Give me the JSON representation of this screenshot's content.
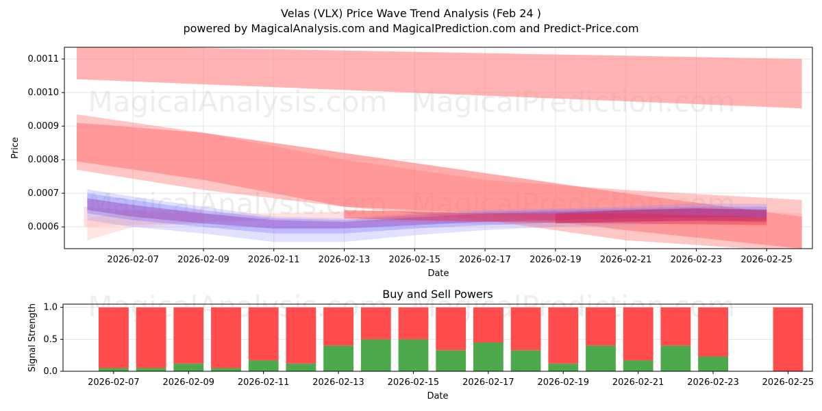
{
  "title": "Velas (VLX) Price Wave Trend Analysis (Feb 24 )",
  "subtitle": "powered by MagicalAnalysis.com and MagicalPrediction.com and Predict-Price.com",
  "watermarks": [
    "MagicalAnalysis.com",
    "MagicalPrediction.com"
  ],
  "chart_data": [
    {
      "type": "area",
      "title": "",
      "xlabel": "Date",
      "ylabel": "Price",
      "ylim": [
        0.000535,
        0.001135
      ],
      "xlim_days": [
        -1.95,
        19.3
      ],
      "x_ticks": [
        "2026-02-07",
        "2026-02-09",
        "2026-02-11",
        "2026-02-13",
        "2026-02-15",
        "2026-02-17",
        "2026-02-19",
        "2026-02-21",
        "2026-02-23",
        "2026-02-25"
      ],
      "y_ticks": [
        "0.0006",
        "0.0007",
        "0.0008",
        "0.0009",
        "0.0010",
        "0.0011"
      ],
      "grid": true,
      "bands": [
        {
          "color": "#ff8080",
          "opacity": 0.6,
          "x": [
            -1.6,
            19
          ],
          "upper": [
            0.00114,
            0.0011
          ],
          "lower": [
            0.00104,
            0.000953
          ]
        },
        {
          "color": "#ff6666",
          "opacity": 0.55,
          "x": [
            -1.6,
            2,
            6,
            10,
            14,
            19
          ],
          "upper": [
            0.00091,
            0.00088,
            0.00082,
            0.00076,
            0.0007,
            0.00063
          ],
          "lower": [
            0.000795,
            0.00074,
            0.00066,
            0.00064,
            0.00059,
            0.000535
          ]
        },
        {
          "color": "#ff8080",
          "opacity": 0.45,
          "x": [
            -1.6,
            2,
            6,
            10,
            14,
            19
          ],
          "upper": [
            0.000935,
            0.00088,
            0.0008,
            0.00074,
            0.00071,
            0.00068
          ],
          "lower": [
            0.00077,
            0.00071,
            0.00066,
            0.00062,
            0.00056,
            0.000525
          ]
        },
        {
          "color": "#ff9999",
          "opacity": 0.3,
          "x": [
            -1.4,
            1,
            4,
            8,
            12,
            16,
            19
          ],
          "upper": [
            0.00066,
            0.00064,
            0.00064,
            0.00065,
            0.000655,
            0.00065,
            0.00064
          ],
          "lower": [
            0.0006,
            0.00061,
            0.00062,
            0.000615,
            0.0006,
            0.000595,
            0.00059
          ]
        },
        {
          "color": "#ffbbbb",
          "opacity": 0.4,
          "x": [
            -1.3,
            0,
            2
          ],
          "upper": [
            0.000625,
            0.00065,
            0.00065
          ],
          "lower": [
            0.00056,
            0.0006,
            0.00061
          ]
        },
        {
          "color": "#8888ff",
          "opacity": 0.25,
          "x": [
            -1.3,
            0,
            2,
            4,
            6,
            8,
            10,
            12,
            14,
            16,
            18
          ],
          "upper": [
            0.000712,
            0.00069,
            0.00066,
            0.00063,
            0.000625,
            0.00064,
            0.00065,
            0.000655,
            0.00066,
            0.00067,
            0.000668
          ],
          "lower": [
            0.00062,
            0.0006,
            0.00058,
            0.000555,
            0.000555,
            0.000575,
            0.00059,
            0.0006,
            0.000605,
            0.00061,
            0.000612
          ]
        },
        {
          "color": "#6666ff",
          "opacity": 0.3,
          "x": [
            -1.3,
            0,
            2,
            4,
            6,
            8,
            10,
            12,
            14,
            16,
            18
          ],
          "upper": [
            0.0007,
            0.00068,
            0.00065,
            0.000625,
            0.00062,
            0.000635,
            0.000645,
            0.00065,
            0.000655,
            0.00066,
            0.00066
          ],
          "lower": [
            0.00064,
            0.00062,
            0.0006,
            0.00058,
            0.00058,
            0.000595,
            0.000605,
            0.000612,
            0.000615,
            0.000618,
            0.00062
          ]
        },
        {
          "color": "#9944bb",
          "opacity": 0.45,
          "x": [
            -1.3,
            0,
            2,
            4,
            6,
            8,
            10,
            12,
            14,
            16,
            18
          ],
          "upper": [
            0.000685,
            0.000665,
            0.00064,
            0.00062,
            0.000615,
            0.000628,
            0.00064,
            0.000645,
            0.00065,
            0.000655,
            0.000652
          ],
          "lower": [
            0.00065,
            0.00063,
            0.00061,
            0.000595,
            0.000595,
            0.000605,
            0.000615,
            0.00062,
            0.000625,
            0.000628,
            0.00063
          ]
        },
        {
          "color": "#ff2222",
          "opacity": 0.4,
          "x": [
            6,
            10,
            14,
            18
          ],
          "upper": [
            0.00065,
            0.00064,
            0.00064,
            0.00063
          ],
          "lower": [
            0.000625,
            0.000615,
            0.00061,
            0.000605
          ]
        },
        {
          "color": "#cc2255",
          "opacity": 0.45,
          "x": [
            12,
            14,
            16,
            18
          ],
          "upper": [
            0.00064,
            0.00065,
            0.000655,
            0.00065
          ],
          "lower": [
            0.00061,
            0.000615,
            0.000618,
            0.000615
          ]
        }
      ]
    },
    {
      "type": "bar",
      "title": "Buy and Sell Powers",
      "xlabel": "Date",
      "ylabel": "Signal Strength",
      "ylim": [
        0,
        1.05
      ],
      "y_ticks": [
        "0.0",
        "0.5",
        "1.0"
      ],
      "x_ticks": [
        "2026-02-07",
        "2026-02-09",
        "2026-02-11",
        "2026-02-13",
        "2026-02-15",
        "2026-02-17",
        "2026-02-19",
        "2026-02-21",
        "2026-02-23",
        "2026-02-25"
      ],
      "grid": true,
      "categories": [
        "2026-02-07",
        "2026-02-08",
        "2026-02-09",
        "2026-02-10",
        "2026-02-11",
        "2026-02-12",
        "2026-02-13",
        "2026-02-14",
        "2026-02-15",
        "2026-02-16",
        "2026-02-17",
        "2026-02-18",
        "2026-02-19",
        "2026-02-20",
        "2026-02-21",
        "2026-02-22",
        "2026-02-23",
        "2026-02-25"
      ],
      "series": [
        {
          "name": "Buy",
          "color": "#4caa4c",
          "values": [
            0.05,
            0.05,
            0.12,
            0.05,
            0.17,
            0.12,
            0.4,
            0.5,
            0.5,
            0.33,
            0.45,
            0.33,
            0.12,
            0.4,
            0.17,
            0.4,
            0.23,
            0.0
          ]
        },
        {
          "name": "Sell",
          "color": "#ff4c4c",
          "values": [
            0.95,
            0.95,
            0.88,
            0.95,
            0.83,
            0.88,
            0.6,
            0.5,
            0.5,
            0.67,
            0.55,
            0.67,
            0.88,
            0.6,
            0.83,
            0.6,
            0.77,
            1.0
          ]
        }
      ]
    }
  ]
}
